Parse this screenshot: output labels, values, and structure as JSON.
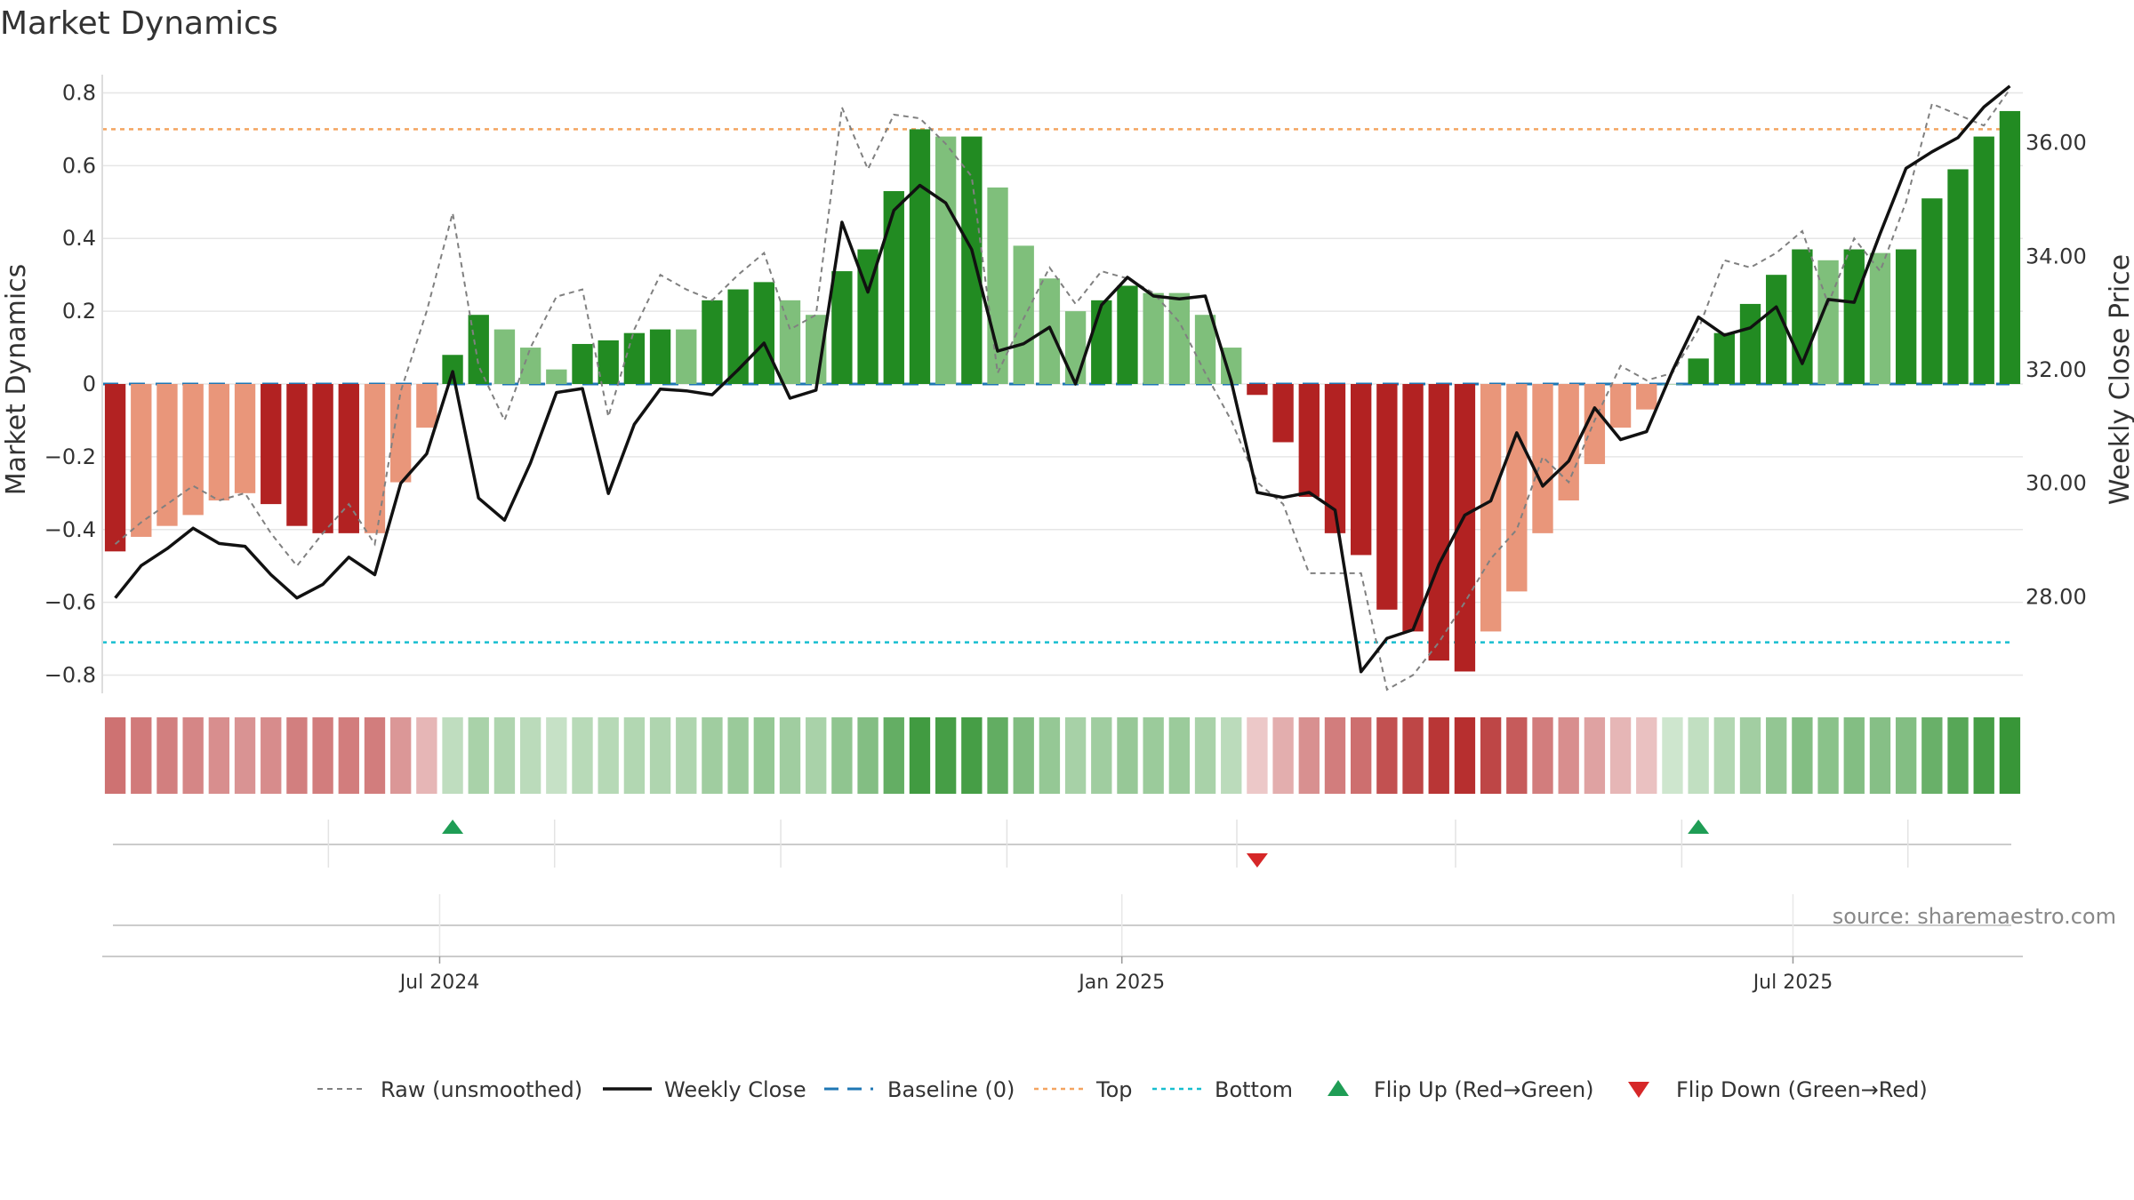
{
  "title": "Market Dynamics",
  "source": "source: sharemaestro.com",
  "colors": {
    "strong_green": "#228b22",
    "light_green": "#7fbf7b",
    "strong_red": "#b22222",
    "light_red": "#e9967a",
    "raw": "#808080",
    "close": "#111111",
    "baseline": "#1f77b4",
    "top": "#f4a460",
    "bottom": "#17becf",
    "flip_up": "#1f9d55",
    "flip_down": "#d62728"
  },
  "chart_data": {
    "type": "bar",
    "title": "Market Dynamics",
    "ylabel": "Market Dynamics",
    "y2label": "Weekly Close Price",
    "ylim": [
      -0.85,
      0.85
    ],
    "y2lim": [
      26.3,
      37.2
    ],
    "yticks": [
      "0.8",
      "0.6",
      "0.4",
      "0.2",
      "0",
      "−0.2",
      "−0.4",
      "−0.6",
      "−0.8"
    ],
    "y2ticks": [
      "36.00",
      "34.00",
      "32.00",
      "30.00",
      "28.00"
    ],
    "xticks": [
      "Jul 2024",
      "Jan 2025",
      "Jul 2025"
    ],
    "x_start": "2024-04-01",
    "week_count": 74,
    "levels": {
      "baseline": 0,
      "top": 0.7,
      "bottom": -0.71
    },
    "bar_values": [
      -0.46,
      -0.42,
      -0.39,
      -0.36,
      -0.32,
      -0.3,
      -0.33,
      -0.39,
      -0.41,
      -0.41,
      -0.41,
      -0.27,
      -0.12,
      0.08,
      0.19,
      0.15,
      0.1,
      0.04,
      0.11,
      0.12,
      0.14,
      0.15,
      0.15,
      0.23,
      0.26,
      0.28,
      0.23,
      0.19,
      0.31,
      0.37,
      0.53,
      0.7,
      0.68,
      0.68,
      0.54,
      0.38,
      0.29,
      0.2,
      0.23,
      0.27,
      0.25,
      0.25,
      0.19,
      0.1,
      -0.03,
      -0.16,
      -0.31,
      -0.41,
      -0.47,
      -0.62,
      -0.68,
      -0.76,
      -0.79,
      -0.68,
      -0.57,
      -0.41,
      -0.32,
      -0.22,
      -0.12,
      -0.07,
      0.0,
      0.07,
      0.14,
      0.22,
      0.3,
      0.37,
      0.34,
      0.37,
      0.36,
      0.37,
      0.51,
      0.59,
      0.68,
      0.75
    ],
    "bar_strength": [
      "strong",
      "light",
      "light",
      "light",
      "light",
      "light",
      "strong",
      "strong",
      "strong",
      "strong",
      "light",
      "light",
      "light",
      "strong",
      "strong",
      "light",
      "light",
      "light",
      "strong",
      "strong",
      "strong",
      "strong",
      "light",
      "strong",
      "strong",
      "strong",
      "light",
      "light",
      "strong",
      "strong",
      "strong",
      "strong",
      "light",
      "strong",
      "light",
      "light",
      "light",
      "light",
      "strong",
      "strong",
      "light",
      "light",
      "light",
      "light",
      "strong",
      "strong",
      "strong",
      "strong",
      "strong",
      "strong",
      "strong",
      "strong",
      "strong",
      "light",
      "light",
      "light",
      "light",
      "light",
      "light",
      "light",
      "light",
      "strong",
      "strong",
      "strong",
      "strong",
      "strong",
      "light",
      "strong",
      "light",
      "strong",
      "strong",
      "strong",
      "strong",
      "strong"
    ],
    "raw_values": [
      -0.44,
      -0.38,
      -0.33,
      -0.28,
      -0.32,
      -0.3,
      -0.41,
      -0.5,
      -0.41,
      -0.33,
      -0.44,
      -0.02,
      0.2,
      0.47,
      0.05,
      -0.1,
      0.1,
      0.24,
      0.26,
      -0.09,
      0.15,
      0.3,
      0.26,
      0.23,
      0.3,
      0.36,
      0.15,
      0.19,
      0.76,
      0.59,
      0.74,
      0.73,
      0.66,
      0.57,
      0.03,
      0.18,
      0.32,
      0.22,
      0.31,
      0.29,
      0.25,
      0.17,
      0.03,
      -0.1,
      -0.27,
      -0.33,
      -0.52,
      -0.52,
      -0.52,
      -0.84,
      -0.8,
      -0.71,
      -0.6,
      -0.48,
      -0.4,
      -0.2,
      -0.27,
      -0.1,
      0.05,
      0.01,
      0.03,
      0.15,
      0.34,
      0.32,
      0.36,
      0.42,
      0.22,
      0.4,
      0.31,
      0.5,
      0.77,
      0.74,
      0.71,
      0.81
    ],
    "close_values": [
      27.98,
      28.55,
      28.85,
      29.21,
      28.94,
      28.89,
      28.39,
      27.98,
      28.22,
      28.7,
      28.39,
      30.0,
      30.52,
      31.97,
      29.74,
      29.35,
      30.36,
      31.6,
      31.67,
      29.82,
      31.04,
      31.66,
      31.63,
      31.56,
      32.0,
      32.47,
      31.5,
      31.64,
      34.6,
      33.37,
      34.81,
      35.25,
      34.94,
      34.12,
      32.33,
      32.46,
      32.75,
      31.75,
      33.14,
      33.63,
      33.3,
      33.25,
      33.3,
      31.8,
      29.84,
      29.75,
      29.84,
      29.53,
      26.68,
      27.27,
      27.42,
      28.57,
      29.44,
      29.69,
      30.89,
      29.95,
      30.39,
      31.33,
      30.77,
      30.91,
      31.98,
      32.93,
      32.61,
      32.74,
      33.11,
      32.11,
      33.24,
      33.19,
      34.4,
      35.55,
      35.84,
      36.09,
      36.63,
      37.0
    ],
    "flips": [
      {
        "week": 13,
        "direction": "up"
      },
      {
        "week": 44,
        "direction": "down"
      },
      {
        "week": 61,
        "direction": "up"
      }
    ],
    "legend": [
      "Raw (unsmoothed)",
      "Weekly Close",
      "Baseline (0)",
      "Top",
      "Bottom",
      "Flip Up (Red→Green)",
      "Flip Down (Green→Red)"
    ]
  }
}
